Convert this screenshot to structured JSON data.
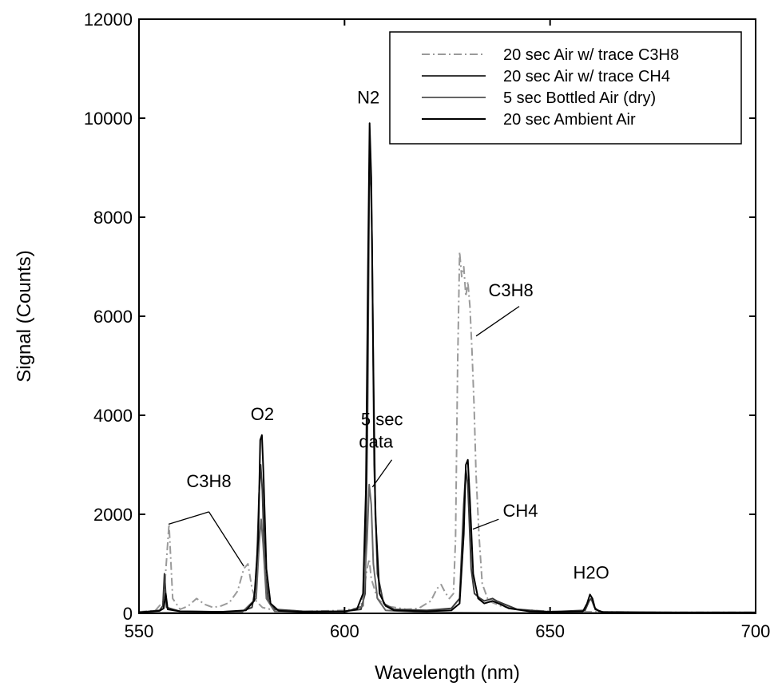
{
  "chart_data": {
    "type": "line",
    "xlabel": "Wavelength (nm)",
    "ylabel": "Signal (Counts)",
    "xlim": [
      550,
      700
    ],
    "ylim": [
      0,
      12000
    ],
    "xticks": [
      550,
      600,
      650,
      700
    ],
    "yticks": [
      0,
      2000,
      4000,
      6000,
      8000,
      10000,
      12000
    ],
    "grid": false,
    "legend_position": "top-right",
    "series": [
      {
        "name": "20 sec Air w/ trace C3H8",
        "color": "#9a9a9a",
        "dash": "dashdot",
        "points": [
          [
            550,
            30
          ],
          [
            554,
            60
          ],
          [
            556,
            250
          ],
          [
            557.3,
            1800
          ],
          [
            558.2,
            300
          ],
          [
            560,
            80
          ],
          [
            562,
            150
          ],
          [
            564,
            300
          ],
          [
            566,
            180
          ],
          [
            568,
            120
          ],
          [
            570,
            150
          ],
          [
            572,
            220
          ],
          [
            574,
            450
          ],
          [
            575.5,
            900
          ],
          [
            576.5,
            1000
          ],
          [
            577.5,
            500
          ],
          [
            578.5,
            250
          ],
          [
            580,
            120
          ],
          [
            582,
            80
          ],
          [
            590,
            40
          ],
          [
            600,
            60
          ],
          [
            604,
            120
          ],
          [
            605.5,
            900
          ],
          [
            606,
            1100
          ],
          [
            606.5,
            700
          ],
          [
            608,
            300
          ],
          [
            610,
            150
          ],
          [
            615,
            80
          ],
          [
            618,
            100
          ],
          [
            621,
            250
          ],
          [
            622.5,
            500
          ],
          [
            623.5,
            580
          ],
          [
            624.5,
            420
          ],
          [
            625.5,
            300
          ],
          [
            626.5,
            400
          ],
          [
            627,
            1500
          ],
          [
            627.5,
            5000
          ],
          [
            628,
            7300
          ],
          [
            628.5,
            6800
          ],
          [
            629,
            7000
          ],
          [
            629.5,
            6400
          ],
          [
            630,
            6700
          ],
          [
            630.5,
            6200
          ],
          [
            631,
            5300
          ],
          [
            631.5,
            4200
          ],
          [
            632,
            2800
          ],
          [
            632.7,
            1600
          ],
          [
            633.5,
            600
          ],
          [
            635,
            250
          ],
          [
            638,
            150
          ],
          [
            642,
            80
          ],
          [
            650,
            40
          ],
          [
            660,
            30
          ],
          [
            680,
            20
          ],
          [
            700,
            20
          ]
        ]
      },
      {
        "name": "20 sec Air w/ trace CH4",
        "color": "#3a3a3a",
        "dash": "solid",
        "points": [
          [
            550,
            20
          ],
          [
            555,
            60
          ],
          [
            555.8,
            150
          ],
          [
            556.2,
            800
          ],
          [
            556.7,
            120
          ],
          [
            560,
            40
          ],
          [
            570,
            30
          ],
          [
            575,
            40
          ],
          [
            577.5,
            120
          ],
          [
            578.5,
            600
          ],
          [
            579.2,
            2400
          ],
          [
            579.6,
            3000
          ],
          [
            580,
            2500
          ],
          [
            580.6,
            900
          ],
          [
            581.5,
            250
          ],
          [
            583,
            80
          ],
          [
            590,
            40
          ],
          [
            600,
            40
          ],
          [
            604,
            80
          ],
          [
            605,
            400
          ],
          [
            605.6,
            4000
          ],
          [
            606,
            8600
          ],
          [
            606.3,
            9200
          ],
          [
            606.7,
            7500
          ],
          [
            607.2,
            3000
          ],
          [
            608,
            800
          ],
          [
            609.5,
            200
          ],
          [
            612,
            80
          ],
          [
            620,
            60
          ],
          [
            626,
            100
          ],
          [
            628,
            300
          ],
          [
            629,
            2200
          ],
          [
            629.5,
            2900
          ],
          [
            630,
            2600
          ],
          [
            630.8,
            900
          ],
          [
            631.6,
            400
          ],
          [
            633,
            300
          ],
          [
            634,
            250
          ],
          [
            636,
            300
          ],
          [
            637,
            250
          ],
          [
            639,
            180
          ],
          [
            642,
            80
          ],
          [
            650,
            30
          ],
          [
            658.5,
            60
          ],
          [
            659.5,
            250
          ],
          [
            660,
            300
          ],
          [
            660.8,
            120
          ],
          [
            662,
            30
          ],
          [
            680,
            20
          ],
          [
            700,
            20
          ]
        ]
      },
      {
        "name": "5 sec Bottled Air (dry)",
        "color": "#666666",
        "dash": "solid",
        "points": [
          [
            550,
            10
          ],
          [
            570,
            15
          ],
          [
            575,
            20
          ],
          [
            578.5,
            300
          ],
          [
            579.3,
            1500
          ],
          [
            579.7,
            1900
          ],
          [
            580.2,
            1400
          ],
          [
            581,
            300
          ],
          [
            583,
            40
          ],
          [
            600,
            20
          ],
          [
            604.5,
            150
          ],
          [
            605.5,
            1500
          ],
          [
            606,
            2600
          ],
          [
            606.5,
            2200
          ],
          [
            607,
            1000
          ],
          [
            608,
            300
          ],
          [
            610,
            60
          ],
          [
            620,
            20
          ],
          [
            640,
            10
          ],
          [
            700,
            10
          ]
        ]
      },
      {
        "name": "20 sec Ambient Air",
        "color": "#000000",
        "dash": "solid",
        "points": [
          [
            550,
            20
          ],
          [
            555,
            50
          ],
          [
            556,
            100
          ],
          [
            556.5,
            400
          ],
          [
            557,
            80
          ],
          [
            560,
            40
          ],
          [
            570,
            30
          ],
          [
            576,
            60
          ],
          [
            578,
            250
          ],
          [
            579,
            1500
          ],
          [
            579.5,
            3500
          ],
          [
            579.9,
            3600
          ],
          [
            580.3,
            2800
          ],
          [
            581,
            900
          ],
          [
            582,
            200
          ],
          [
            584,
            50
          ],
          [
            590,
            30
          ],
          [
            600,
            40
          ],
          [
            603,
            80
          ],
          [
            604.5,
            400
          ],
          [
            605.2,
            2500
          ],
          [
            605.7,
            7000
          ],
          [
            606.1,
            9900
          ],
          [
            606.5,
            8800
          ],
          [
            607,
            5000
          ],
          [
            607.5,
            2000
          ],
          [
            608.5,
            400
          ],
          [
            610,
            150
          ],
          [
            612,
            60
          ],
          [
            620,
            40
          ],
          [
            626,
            60
          ],
          [
            628,
            200
          ],
          [
            629,
            1600
          ],
          [
            629.5,
            3000
          ],
          [
            630,
            3100
          ],
          [
            630.5,
            2300
          ],
          [
            631.3,
            800
          ],
          [
            632.5,
            300
          ],
          [
            634,
            200
          ],
          [
            636,
            250
          ],
          [
            638,
            180
          ],
          [
            640,
            100
          ],
          [
            645,
            40
          ],
          [
            650,
            30
          ],
          [
            658,
            40
          ],
          [
            659,
            200
          ],
          [
            659.7,
            380
          ],
          [
            660.3,
            300
          ],
          [
            661,
            80
          ],
          [
            663,
            20
          ],
          [
            680,
            15
          ],
          [
            700,
            15
          ]
        ]
      }
    ],
    "annotations": [
      {
        "text": "N2",
        "x": 605.8,
        "y": 10300,
        "anchor": "middle"
      },
      {
        "text": "O2",
        "x": 580,
        "y": 3900,
        "anchor": "middle"
      },
      {
        "text": "C3H8",
        "x": 567,
        "y": 2550,
        "anchor": "middle"
      },
      {
        "text": "5 sec",
        "x": 604,
        "y": 3800,
        "anchor": "start"
      },
      {
        "text": "data",
        "x": 603.5,
        "y": 3350,
        "anchor": "start"
      },
      {
        "text": "C3H8",
        "x": 635,
        "y": 6400,
        "anchor": "start"
      },
      {
        "text": "CH4",
        "x": 638.5,
        "y": 1950,
        "anchor": "start"
      },
      {
        "text": "H2O",
        "x": 660,
        "y": 700,
        "anchor": "middle"
      }
    ],
    "leader_lines": [
      [
        [
          567,
          2050
        ],
        [
          557.2,
          1800
        ]
      ],
      [
        [
          567,
          2050
        ],
        [
          575.5,
          950
        ]
      ],
      [
        [
          611.5,
          3100
        ],
        [
          606.8,
          2550
        ]
      ],
      [
        [
          642.5,
          6200
        ],
        [
          632,
          5600
        ]
      ],
      [
        [
          637.5,
          1900
        ],
        [
          631.2,
          1700
        ]
      ]
    ]
  }
}
